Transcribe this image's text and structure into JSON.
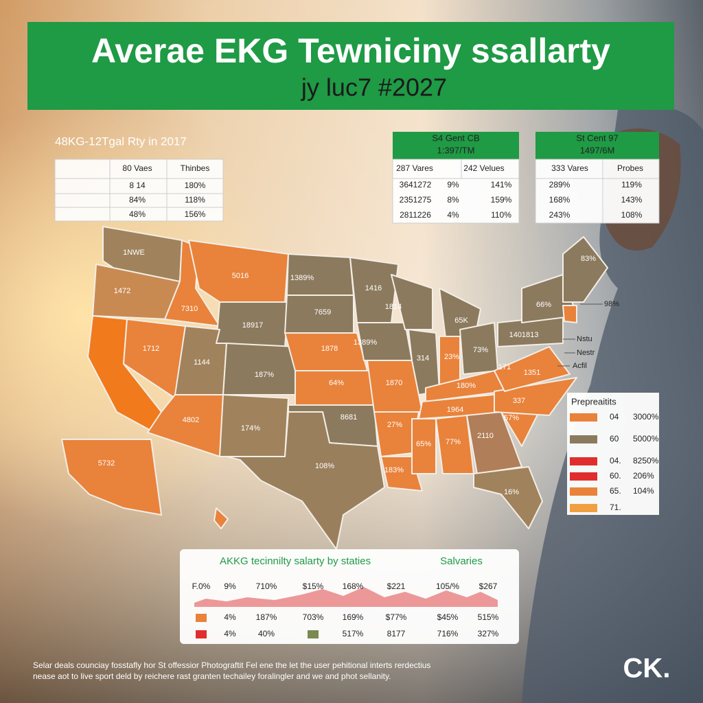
{
  "header": {
    "title": "Averae EKG Tewniciny ssallarty",
    "subtitle": "jy luc7 #2027"
  },
  "table_left": {
    "title": "48KG-12Tgal Rty in 2017",
    "columns": [
      "80 Vaes",
      "Thinbes"
    ],
    "rows": [
      [
        "8 14",
        "180%"
      ],
      [
        "84%",
        "118%"
      ],
      [
        "48%",
        "156%"
      ]
    ]
  },
  "table_mid": {
    "title": [
      "S4 Gent CB",
      "1:397/TM"
    ],
    "columns": [
      "287 Vares",
      "242 Velues"
    ],
    "rows": [
      [
        "3641272",
        "9%",
        "141%"
      ],
      [
        "2351275",
        "8%",
        "159%"
      ],
      [
        "2811226",
        "4%",
        "110%"
      ]
    ]
  },
  "table_right": {
    "title": [
      "St Cent 97",
      "1497/6M"
    ],
    "columns": [
      "333 Vares",
      "Probes"
    ],
    "rows": [
      [
        "289%",
        "119%"
      ],
      [
        "168%",
        "143%"
      ],
      [
        "243%",
        "108%"
      ]
    ]
  },
  "map": {
    "labels": [
      "1NWE",
      "1472",
      "5016",
      "7310",
      "1389%",
      "1416",
      "18917",
      "7659",
      "1814",
      "65K",
      "66%",
      "1712",
      "1144",
      "1878",
      "1389%",
      "314",
      "23%",
      "73%",
      "1401813",
      "187%",
      "64%",
      "1870",
      "180%",
      "171",
      "1351",
      "4802",
      "174%",
      "8681",
      "27%",
      "1964",
      "337",
      "57%",
      "108%",
      "65%",
      "77%",
      "2110",
      "183%",
      "16%",
      "5732",
      "83%"
    ],
    "callouts": [
      "98%",
      "Nstu",
      "Nestr",
      "Acfil"
    ]
  },
  "legend": {
    "title": "Prepreaitits",
    "items": [
      [
        "04",
        "3000%"
      ],
      [
        "60",
        "5000%"
      ],
      [
        "04.",
        "8250%"
      ],
      [
        "60.",
        "206%"
      ],
      [
        "65.",
        "104%"
      ],
      [
        "71."
      ]
    ]
  },
  "bottom_panel": {
    "title": "AKKG tecinnilty salarty by staties",
    "subtitle": "Salvaries",
    "rows": [
      [
        "F.0%",
        "9%",
        "710%",
        "$15%",
        "168%",
        "$221",
        "105/%",
        "$267"
      ],
      [
        "4%",
        "187%",
        "703%",
        "169%",
        "$77%",
        "$45%",
        "515%"
      ],
      [
        "4%",
        "40%",
        "517%",
        "8177",
        "716%",
        "327%"
      ]
    ]
  },
  "footer": {
    "lines": [
      "Selar deals counciay fosstafly hor St offessior Photograftit Fel ene the let the user pehitional interts rerdectius",
      "nease aot to live sport deld by reichere rast granten techailey foralingler and we and phot sellanity."
    ]
  },
  "logo": "CK."
}
